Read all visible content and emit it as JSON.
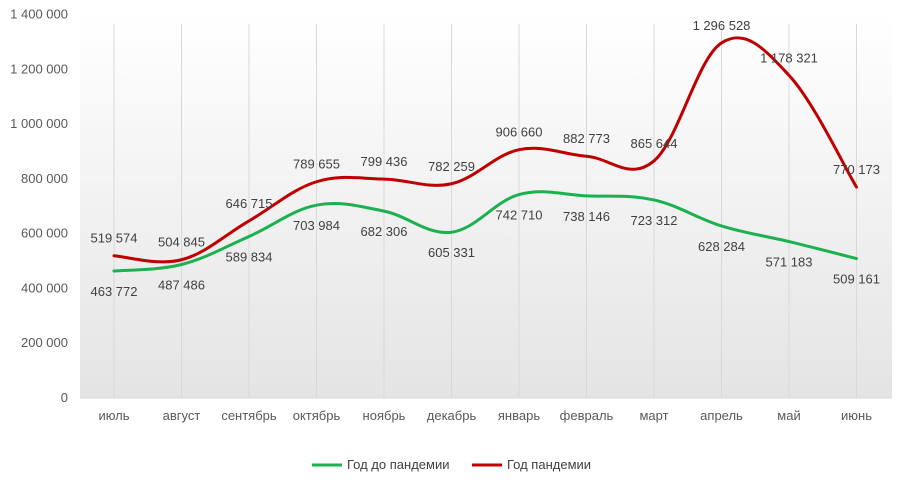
{
  "chart_data": {
    "type": "line",
    "title": "",
    "xlabel": "",
    "ylabel": "",
    "categories": [
      "июль",
      "август",
      "сентябрь",
      "октябрь",
      "ноябрь",
      "декабрь",
      "январь",
      "февраль",
      "март",
      "апрель",
      "май",
      "июнь"
    ],
    "ylim": [
      0,
      1400000
    ],
    "yticks": [
      0,
      200000,
      400000,
      600000,
      800000,
      1000000,
      1200000,
      1400000
    ],
    "ytick_labels": [
      "0",
      "200 000",
      "400 000",
      "600 000",
      "800 000",
      "1 000 000",
      "1 200 000",
      "1 400 000"
    ],
    "grid": "vertical",
    "legend_position": "bottom",
    "series": [
      {
        "name": "Год до пандемии",
        "color": "#1cb14f",
        "values": [
          463772,
          487486,
          589834,
          703984,
          682306,
          605331,
          742710,
          738146,
          723312,
          628284,
          571183,
          509161
        ],
        "labels": [
          "463 772",
          "487 486",
          "589 834",
          "703 984",
          "682 306",
          "605 331",
          "742 710",
          "738 146",
          "723 312",
          "628 284",
          "571 183",
          "509 161"
        ]
      },
      {
        "name": "Год пандемии",
        "color": "#c00000",
        "values": [
          519574,
          504845,
          646715,
          789655,
          799436,
          782259,
          906660,
          882773,
          865644,
          1296528,
          1178321,
          770173
        ],
        "labels": [
          "519 574",
          "504 845",
          "646 715",
          "789 655",
          "799 436",
          "782 259",
          "906 660",
          "882 773",
          "865 644",
          "1 296 528",
          "1 178 321",
          "770 173"
        ]
      }
    ]
  }
}
